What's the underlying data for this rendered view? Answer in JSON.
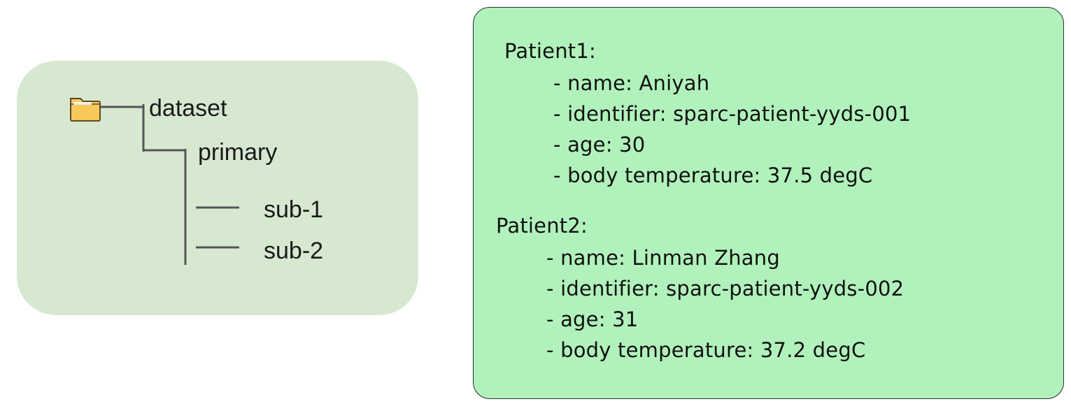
{
  "tree": {
    "root_label": "dataset",
    "folder_icon": "folder-icon",
    "folder_color": "#f7c85a",
    "child_label": "primary",
    "leaves": [
      "sub-1",
      "sub-2"
    ]
  },
  "patients": [
    {
      "heading": "Patient1:",
      "fields": [
        "- name: Aniyah",
        "- identifier: sparc-patient-yyds-001",
        "- age: 30",
        "- body temperature: 37.5 degC"
      ]
    },
    {
      "heading": "Patient2:",
      "fields": [
        "- name: Linman Zhang",
        "- identifier: sparc-patient-yyds-002",
        "- age: 31",
        "- body temperature: 37.2 degC"
      ]
    }
  ],
  "colors": {
    "tree_panel_bg": "#d7e8d1",
    "info_panel_bg": "#b1f2bc",
    "line_color": "#555555"
  }
}
